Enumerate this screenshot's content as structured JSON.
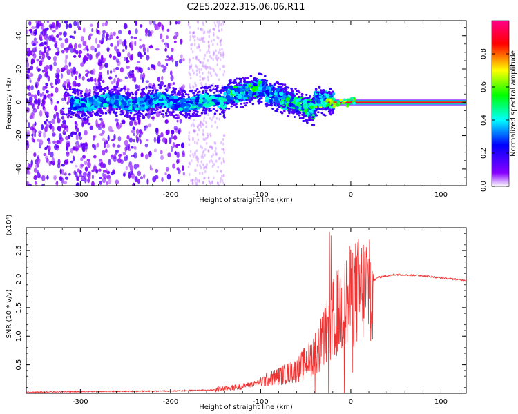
{
  "title": "C2E5.2022.315.06.06.R11",
  "chart_data": [
    {
      "type": "heatmap",
      "xlabel": "Height of straight line (km)",
      "ylabel": "Frequency (Hz)",
      "xlim": [
        -360,
        128
      ],
      "ylim": [
        -50,
        49
      ],
      "xticks": [
        -300,
        -200,
        -100,
        0,
        100
      ],
      "yticks": [
        -40,
        -20,
        0,
        20,
        40
      ],
      "colorbar": {
        "label": "Normalized spectral amplitude",
        "range": [
          0,
          1
        ],
        "ticks": [
          0.0,
          0.2,
          0.4,
          0.6,
          0.8
        ],
        "colormap": [
          "#ffffff",
          "#8800ff",
          "#0000ff",
          "#00ffff",
          "#00ff00",
          "#ffff00",
          "#ff0000",
          "#ff0088"
        ]
      },
      "features": [
        {
          "x_range": [
            -360,
            -185
          ],
          "f_range": [
            -50,
            49
          ],
          "amplitude": 0.1,
          "note": "scattered noise"
        },
        {
          "x_range": [
            -310,
            -20
          ],
          "center_start_hz": 0,
          "center_end_hz": -2,
          "amplitude": 0.35
        },
        {
          "x_range": [
            -130,
            -100
          ],
          "center_hz": 9,
          "amplitude": 0.5
        },
        {
          "x_range": [
            -80,
            -40
          ],
          "center_hz": -5,
          "amplitude": 0.45
        },
        {
          "x_range": [
            -20,
            128
          ],
          "center_hz": 0,
          "amplitude": 0.9
        }
      ]
    },
    {
      "type": "line",
      "xlabel": "Height of straight line (km)",
      "ylabel": "SNR (10 * v/v)",
      "yscale_label": "(x10⁴)",
      "xlim": [
        -360,
        128
      ],
      "ylim": [
        0,
        2.9
      ],
      "xticks": [
        -300,
        -200,
        -100,
        0,
        100
      ],
      "yticks": [
        0.5,
        1.0,
        1.5,
        2.0,
        2.5
      ],
      "ytick_labels": [
        "0.5",
        "1.0",
        "1.5",
        "2.0",
        "2.5"
      ],
      "series": [
        {
          "color": "#ee3333",
          "x": [
            -360,
            -300,
            -200,
            -150,
            -120,
            -100,
            -80,
            -60,
            -40,
            -30,
            -20,
            -15,
            -10,
            -5,
            0,
            10,
            20,
            30,
            50,
            80,
            100,
            128
          ],
          "y": [
            0.02,
            0.03,
            0.04,
            0.06,
            0.12,
            0.2,
            0.3,
            0.4,
            0.7,
            0.95,
            1.3,
            1.4,
            1.5,
            1.6,
            1.7,
            1.8,
            1.9,
            2.03,
            2.08,
            2.06,
            2.02,
            1.98
          ]
        }
      ]
    }
  ]
}
